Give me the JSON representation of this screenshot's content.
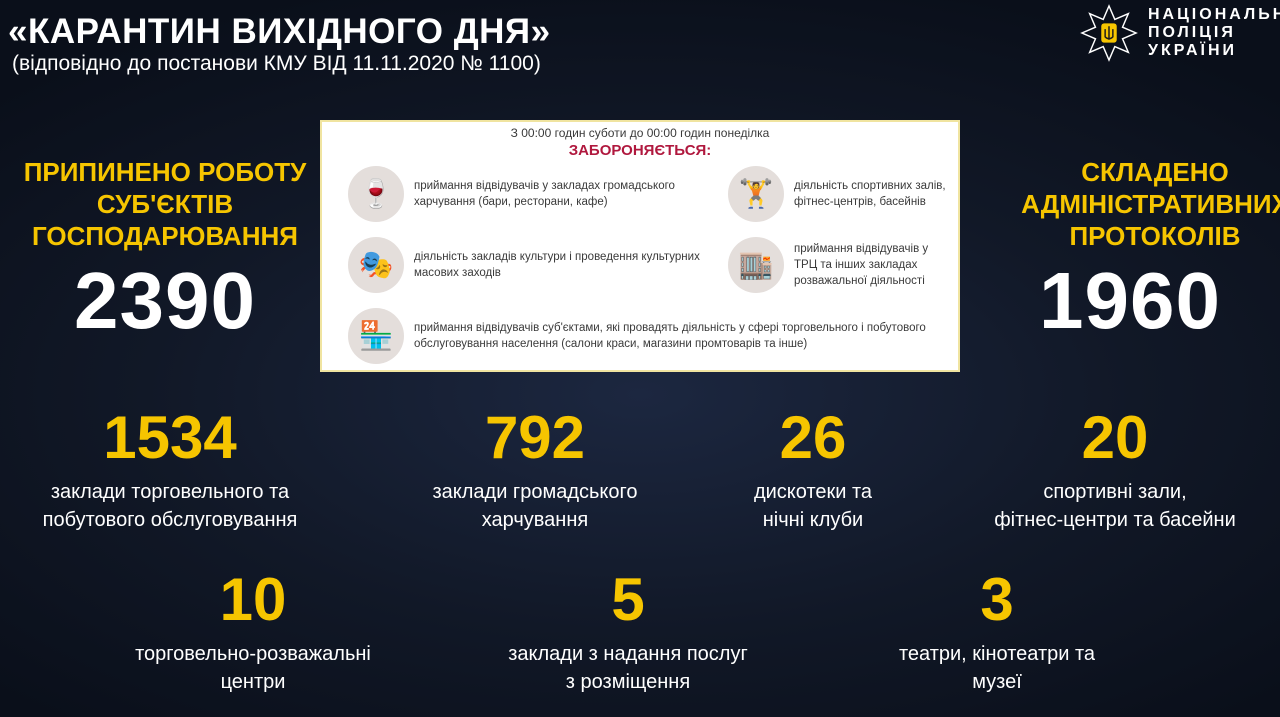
{
  "header": {
    "title": "«КАРАНТИН ВИХІДНОГО ДНЯ»",
    "subtitle": "(відповідно до постанови КМУ ВІД 11.11.2020 № 1100)"
  },
  "logo": {
    "lines": [
      "НАЦІОНАЛЬНА",
      "ПОЛІЦІЯ",
      "УКРАЇНИ"
    ]
  },
  "left": {
    "lines": [
      "ПРИПИНЕНО РОБОТУ",
      "СУБ'ЄКТІВ",
      "ГОСПОДАРЮВАННЯ"
    ],
    "value": "2390"
  },
  "right": {
    "lines": [
      "СКЛАДЕНО",
      "АДМІНІСТРАТИВНИХ",
      "ПРОТОКОЛІВ"
    ],
    "value": "1960"
  },
  "panel": {
    "time": "З 00:00 годин суботи до 00:00 годин понеділка",
    "banned": "ЗАБОРОНЯЄТЬСЯ:",
    "items": [
      {
        "icon": "wine-glass-icon",
        "text": "приймання відвідувачів у закладах громадського харчування (бари, ресторани, кафе)"
      },
      {
        "icon": "dumbbell-icon",
        "text": "діяльність спортивних залів, фітнес-центрів, басейнів"
      },
      {
        "icon": "theater-masks-icon",
        "text": "діяльність закладів культури і проведення культурних масових заходів"
      },
      {
        "icon": "shopping-mall-icon",
        "text": "приймання відвідувачів у ТРЦ та інших закладах розважальної діяльності"
      },
      {
        "icon": "shop-icon",
        "text": "приймання відвідувачів суб'єктами, які провадять діяльність у сфері торговельного і побутового обслуговування населення (салони краси, магазини промтоварів та інше)"
      }
    ]
  },
  "stats": [
    {
      "value": "1534",
      "label1": "заклади торговельного та",
      "label2": "побутового обслуговування"
    },
    {
      "value": "792",
      "label1": "заклади громадського",
      "label2": "харчування"
    },
    {
      "value": "26",
      "label1": "дискотеки та",
      "label2": "нічні клуби"
    },
    {
      "value": "20",
      "label1": "спортивні зали,",
      "label2": "фітнес-центри та басейни"
    },
    {
      "value": "10",
      "label1": "торговельно-розважальні",
      "label2": "центри"
    },
    {
      "value": "5",
      "label1": "заклади з надання послуг",
      "label2": "з розміщення"
    },
    {
      "value": "3",
      "label1": "театри, кінотеатри та",
      "label2": "музеї"
    }
  ],
  "colors": {
    "accent": "#f6c500",
    "banned": "#b0183e",
    "background": "#111827"
  }
}
